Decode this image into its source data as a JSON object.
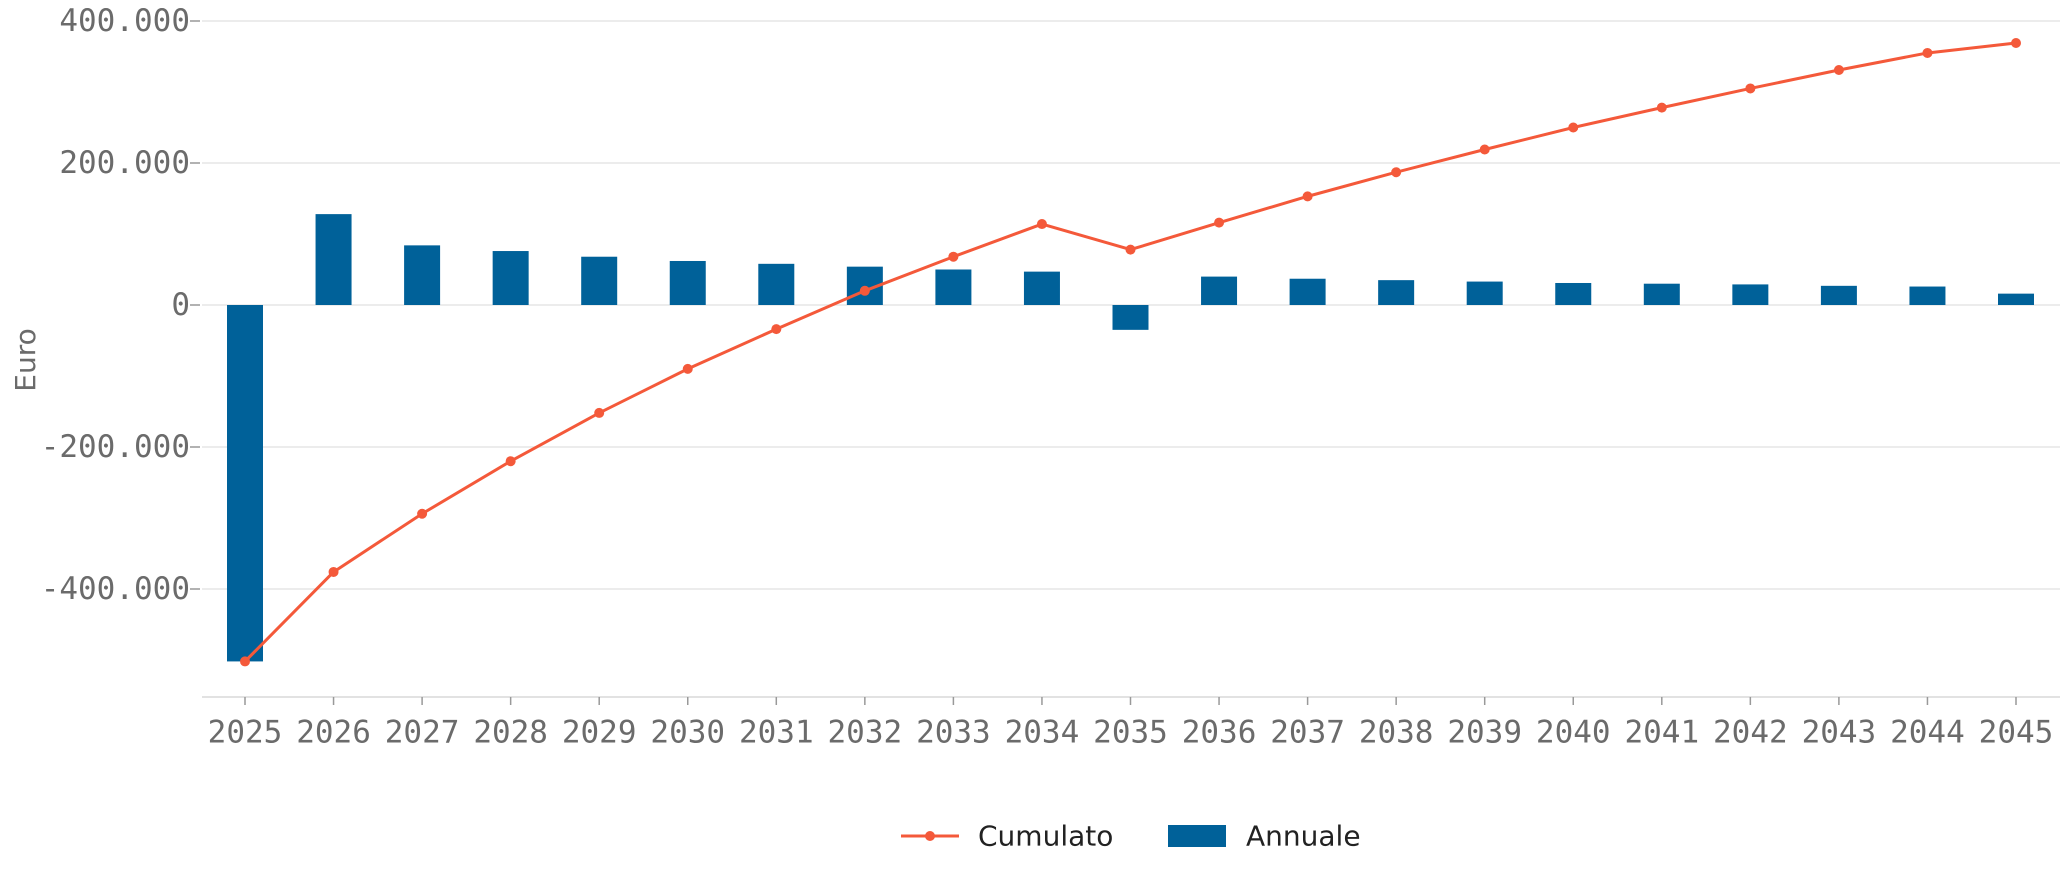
{
  "chart_data": {
    "type": "bar",
    "title": "",
    "xlabel": "",
    "ylabel": "Euro",
    "categories": [
      "2025",
      "2026",
      "2027",
      "2028",
      "2029",
      "2030",
      "2031",
      "2032",
      "2033",
      "2034",
      "2035",
      "2036",
      "2037",
      "2038",
      "2039",
      "2040",
      "2041",
      "2042",
      "2043",
      "2044",
      "2045"
    ],
    "series": [
      {
        "name": "Annuale",
        "type": "bar",
        "color": "#006199",
        "values": [
          -502000,
          128000,
          84000,
          76000,
          68000,
          62000,
          58000,
          54000,
          50000,
          47000,
          -35000,
          40000,
          37000,
          35000,
          33000,
          31000,
          30000,
          29000,
          27000,
          26000,
          16000
        ]
      },
      {
        "name": "Cumulato",
        "type": "line",
        "color": "#f4593a",
        "values": [
          -502000,
          -376000,
          -294000,
          -220000,
          -152000,
          -90000,
          -34000,
          20000,
          68000,
          114000,
          78000,
          116000,
          153000,
          187000,
          219000,
          250000,
          278000,
          305000,
          331000,
          355000,
          369000
        ]
      }
    ],
    "ylim": [
      -555000,
      400000
    ],
    "yticks": [
      400000,
      200000,
      0,
      -200000,
      -400000
    ],
    "ytick_labels": [
      "400.000",
      "200.000",
      "0",
      "-200.000",
      "-400.000"
    ],
    "grid": true,
    "legend": {
      "position": "bottom-center",
      "entries": [
        "Cumulato",
        "Annuale"
      ]
    }
  }
}
